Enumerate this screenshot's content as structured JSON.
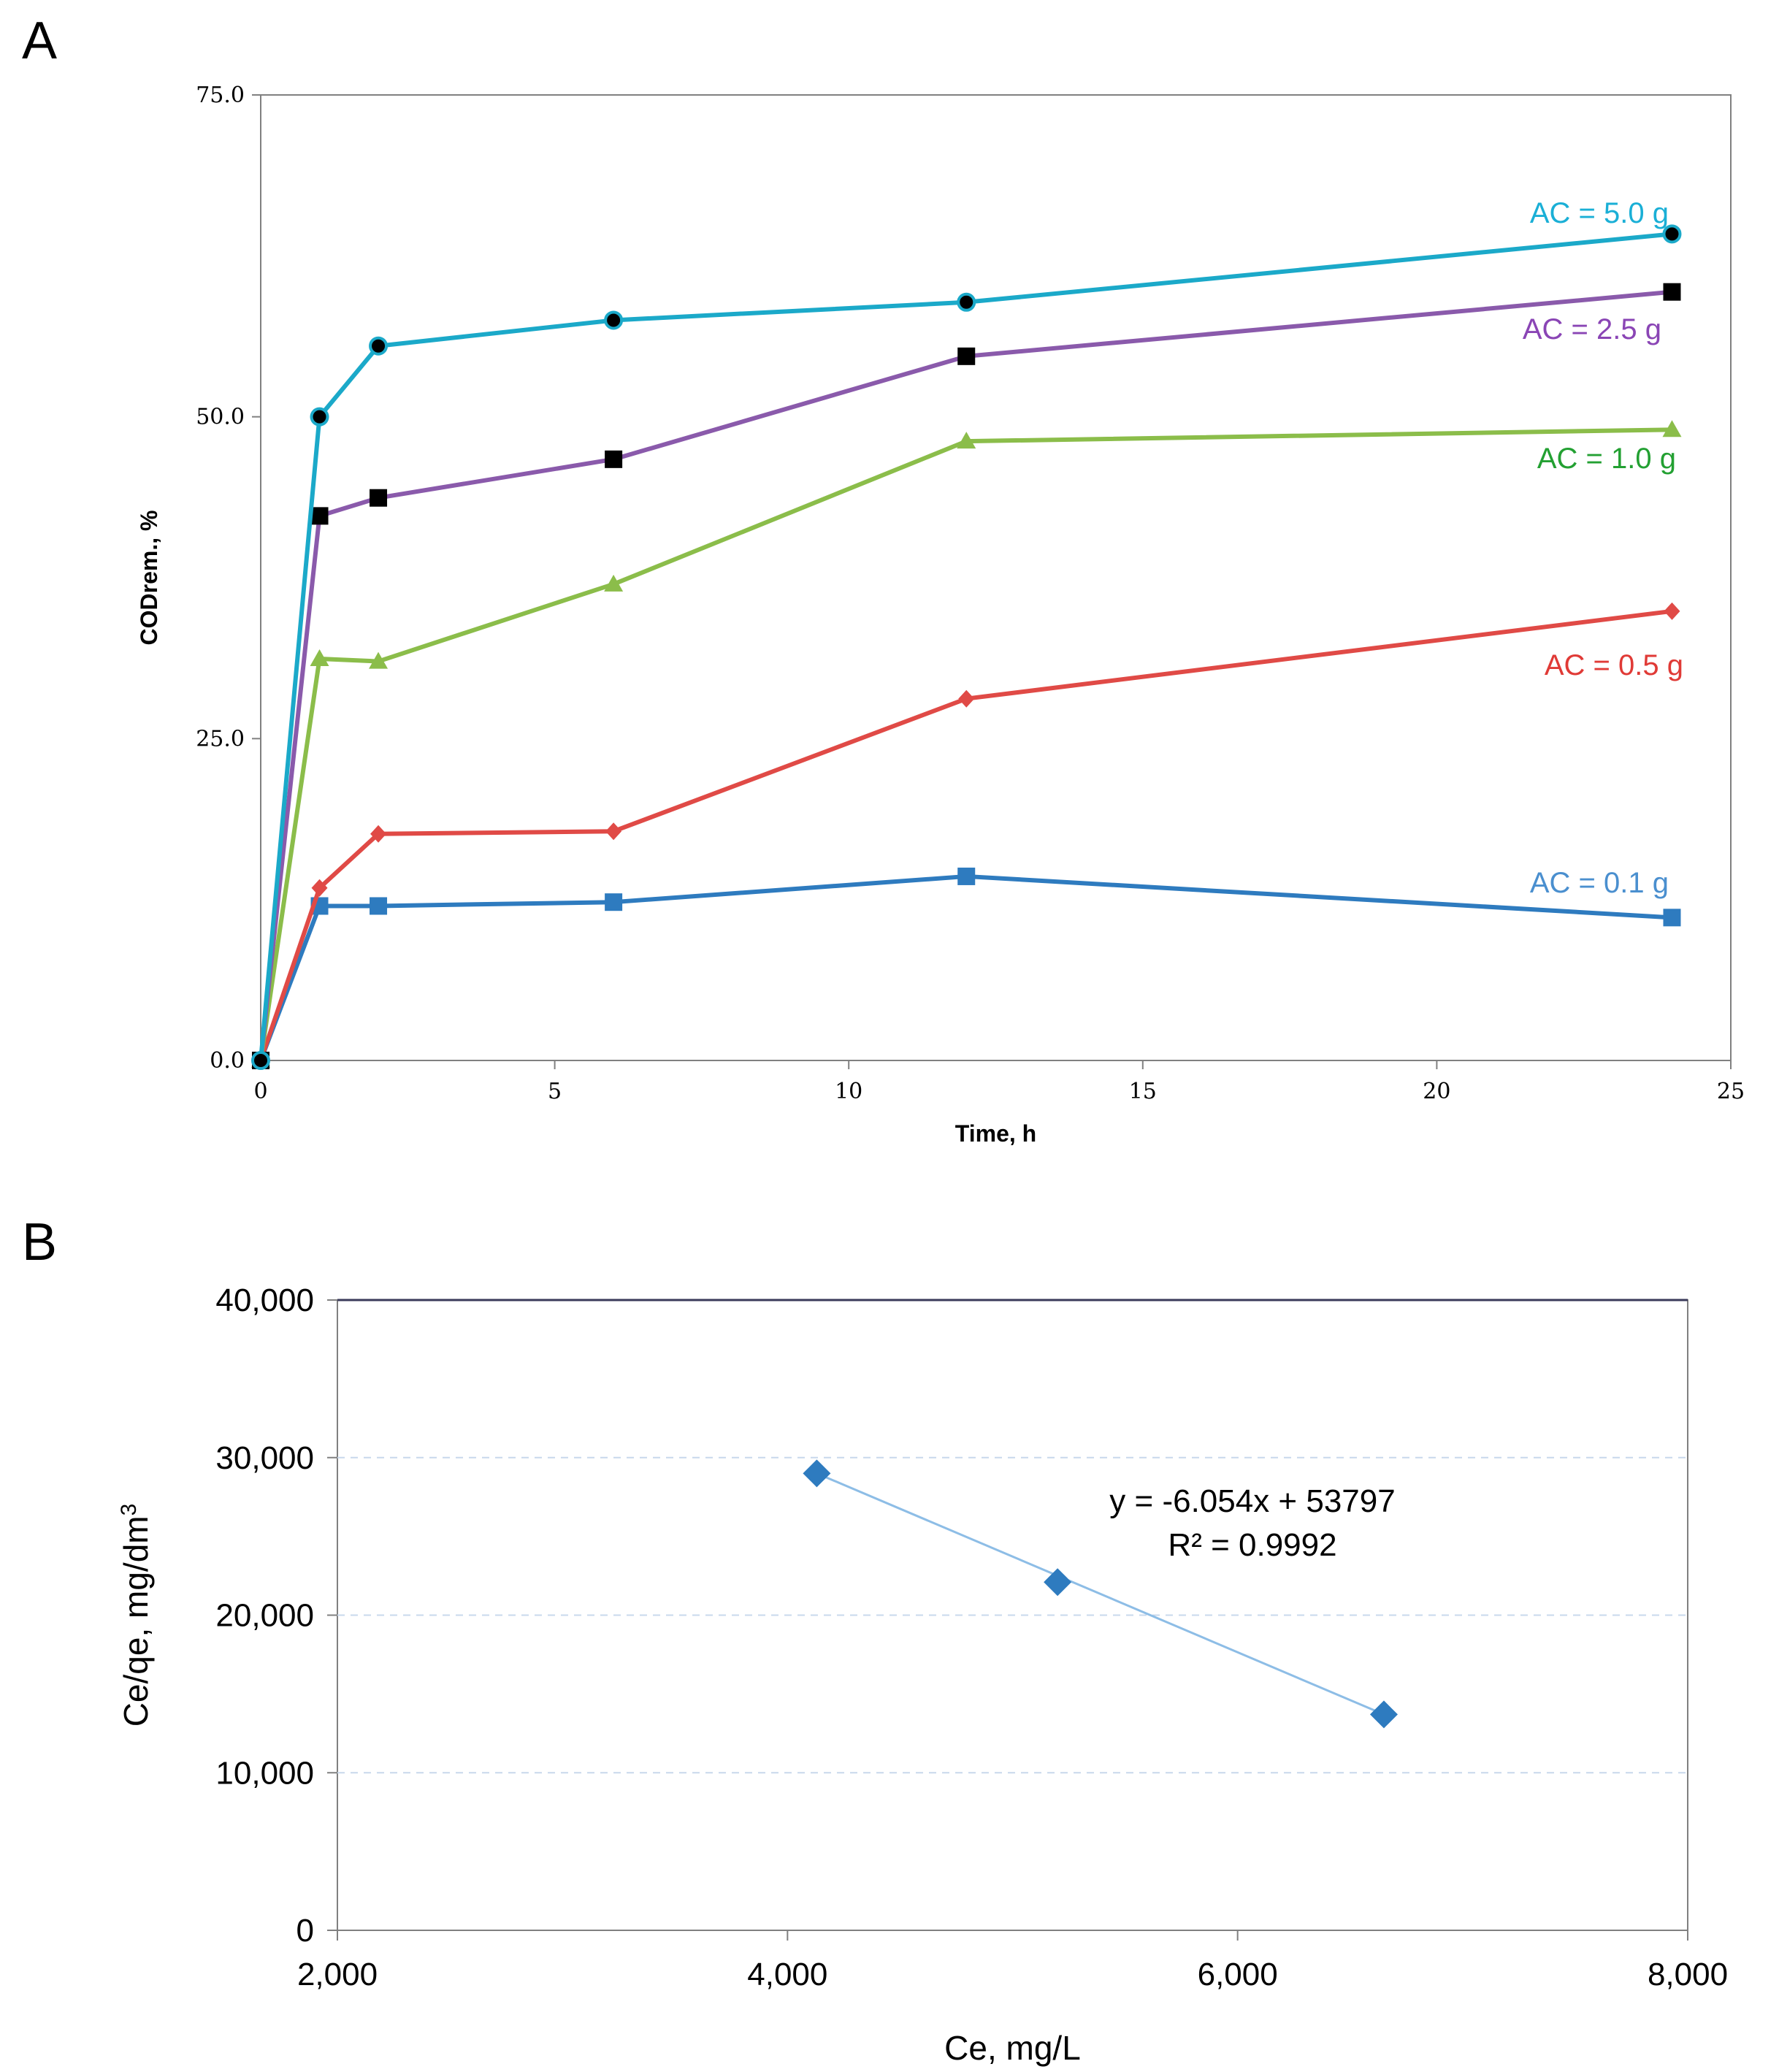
{
  "chart_data": [
    {
      "panel": "A",
      "type": "line",
      "title": "",
      "xlabel": "Time, h",
      "ylabel": "CODrem., %",
      "xlim": [
        0,
        25
      ],
      "ylim": [
        0,
        75
      ],
      "xticks": [
        "0",
        "5",
        "10",
        "15",
        "20",
        "25"
      ],
      "yticks": [
        "0.0",
        "25.0",
        "50.0",
        "75.0"
      ],
      "x": [
        0,
        1,
        2,
        6,
        12,
        24
      ],
      "grid": false,
      "series": [
        {
          "name": "AC = 0.1 g",
          "color": "#2e7bbf",
          "label_color": "#4a8fcf",
          "marker": "square",
          "marker_color": "#2e7bbf",
          "values": [
            0,
            12.0,
            12.0,
            12.3,
            14.3,
            11.1
          ]
        },
        {
          "name": "AC = 0.5 g",
          "color": "#e04a46",
          "label_color": "#e03a36",
          "marker": "diamond",
          "marker_color": "#e04a46",
          "values": [
            0,
            13.4,
            17.6,
            17.8,
            28.1,
            34.9
          ]
        },
        {
          "name": "AC = 1.0 g",
          "color": "#8bbd4a",
          "label_color": "#23a032",
          "marker": "triangle",
          "marker_color": "#8bbd4a",
          "values": [
            0,
            31.2,
            31.0,
            37.0,
            48.1,
            49.0
          ]
        },
        {
          "name": "AC = 2.5 g",
          "color": "#8a5aab",
          "label_color": "#8a45b5",
          "marker": "square",
          "marker_color": "#000000",
          "values": [
            0,
            42.3,
            43.7,
            46.7,
            54.7,
            59.7
          ]
        },
        {
          "name": "AC = 5.0 g",
          "color": "#1ba9c9",
          "label_color": "#1aafd6",
          "marker": "circle",
          "marker_color": "#000000",
          "values": [
            0,
            50.0,
            55.5,
            57.5,
            58.9,
            64.2
          ]
        }
      ]
    },
    {
      "panel": "B",
      "type": "scatter",
      "title": "",
      "xlabel": "Ce, mg/L",
      "ylabel": "Ce/qe, mg/dm",
      "ylabel_sup": "3",
      "xlim": [
        2000,
        8000
      ],
      "ylim": [
        0,
        40000
      ],
      "xticks": [
        "2,000",
        "4,000",
        "6,000",
        "8,000"
      ],
      "yticks": [
        "0",
        "10,000",
        "20,000",
        "30,000",
        "40,000"
      ],
      "grid": true,
      "color": "#2e7bbf",
      "trend_color": "#8dbde6",
      "points": [
        {
          "x": 4130,
          "y": 29000
        },
        {
          "x": 5200,
          "y": 22100
        },
        {
          "x": 6650,
          "y": 13700
        }
      ],
      "equation": "y = -6.054x + 53797",
      "r2": "R² = 0.9992"
    }
  ],
  "panels": {
    "a": "A",
    "b": "B"
  }
}
